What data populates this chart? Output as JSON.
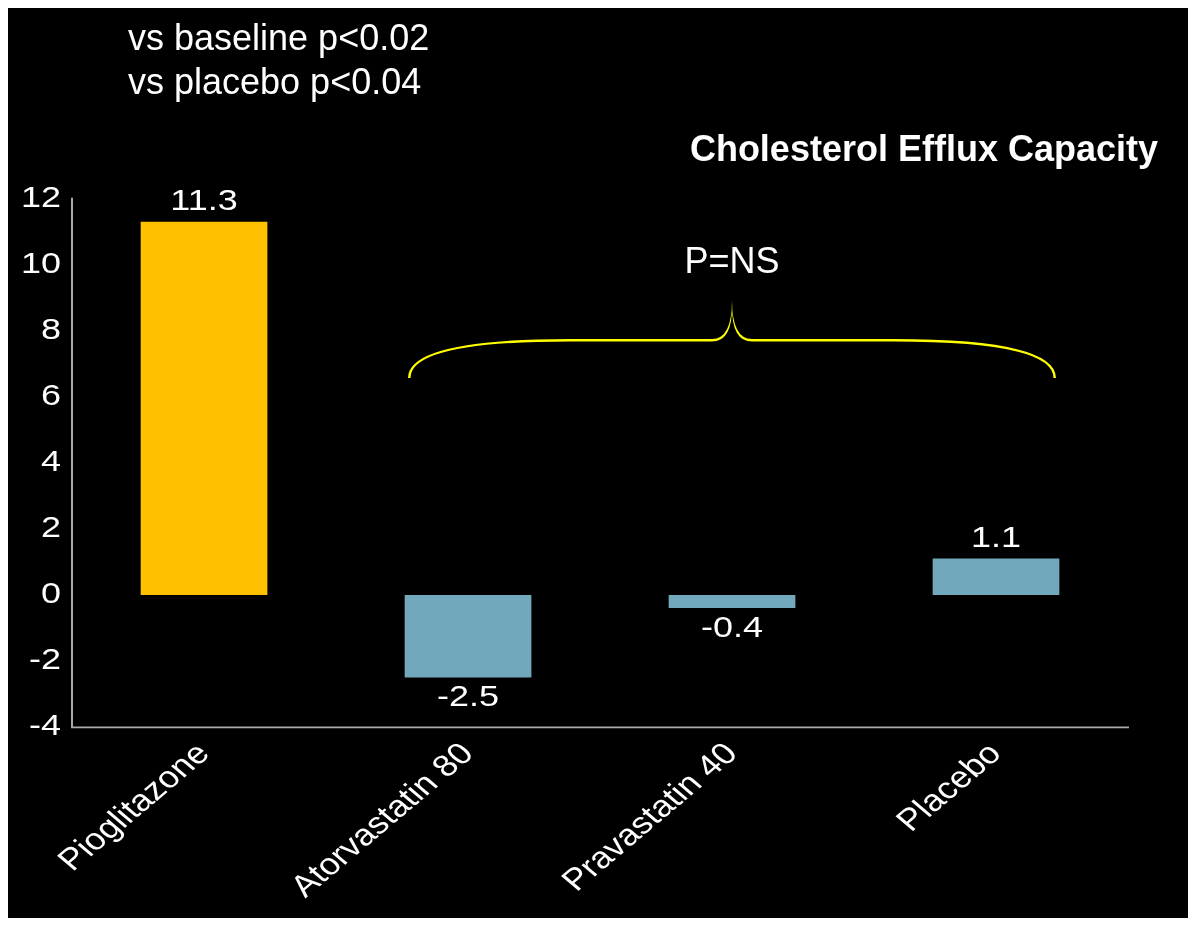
{
  "chart_data": {
    "type": "bar",
    "title": "Cholesterol Efflux Capacity",
    "categories": [
      "Pioglitazone",
      "Atorvastatin 80",
      "Pravastatin 40",
      "Placebo"
    ],
    "values": [
      11.3,
      -2.5,
      -0.4,
      1.1
    ],
    "colors": [
      "#ffc000",
      "#72a8bb",
      "#72a8bb",
      "#72a8bb"
    ],
    "ylim": [
      -4,
      12
    ],
    "yticks": [
      -4,
      -2,
      0,
      2,
      4,
      6,
      8,
      10,
      12
    ],
    "grid": false,
    "legend": false,
    "data_labels": true,
    "annotations": [
      "vs baseline p<0.02",
      "vs placebo p<0.04",
      "P=NS"
    ]
  }
}
